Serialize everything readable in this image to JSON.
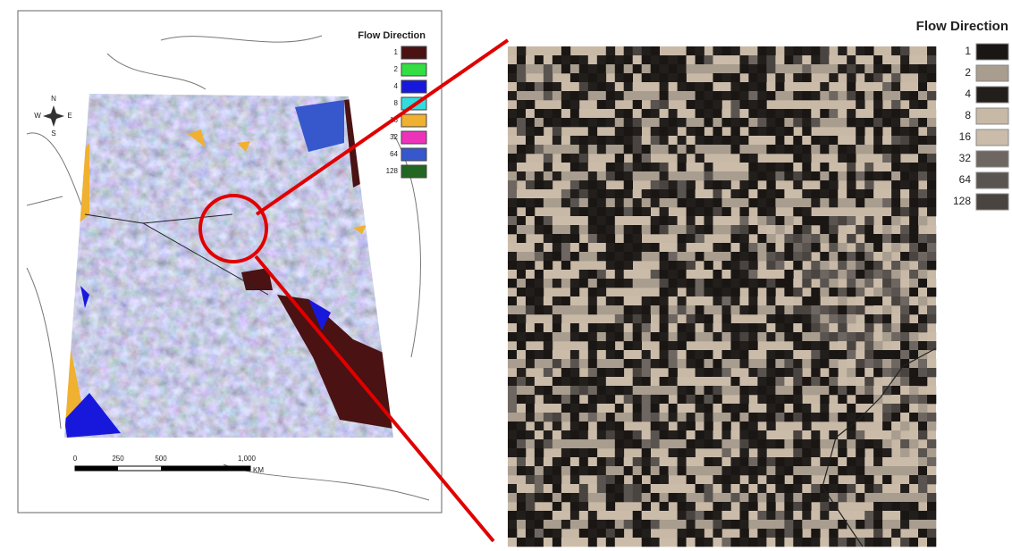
{
  "left_map": {
    "legend": {
      "title": "Flow Direction",
      "items": [
        {
          "label": "1",
          "color": "#4a1212"
        },
        {
          "label": "2",
          "color": "#33dd44"
        },
        {
          "label": "4",
          "color": "#1818dd"
        },
        {
          "label": "8",
          "color": "#33dddd"
        },
        {
          "label": "16",
          "color": "#f0b030"
        },
        {
          "label": "32",
          "color": "#ee33bb"
        },
        {
          "label": "64",
          "color": "#3658cc"
        },
        {
          "label": "128",
          "color": "#226622"
        }
      ]
    },
    "compass": {
      "n": "N",
      "e": "E",
      "s": "S",
      "w": "W"
    },
    "scale_bar": {
      "labels": [
        "0",
        "250",
        "500",
        "1,000"
      ],
      "unit": "KM"
    }
  },
  "right_map": {
    "legend": {
      "title": "Flow Direction",
      "items": [
        {
          "label": "1",
          "color": "#1a1614"
        },
        {
          "label": "2",
          "color": "#a89d8e"
        },
        {
          "label": "4",
          "color": "#221e1c"
        },
        {
          "label": "8",
          "color": "#c8b8a6"
        },
        {
          "label": "16",
          "color": "#cbbcaa"
        },
        {
          "label": "32",
          "color": "#6e6660"
        },
        {
          "label": "64",
          "color": "#5a5450"
        },
        {
          "label": "128",
          "color": "#4a4440"
        }
      ]
    }
  }
}
